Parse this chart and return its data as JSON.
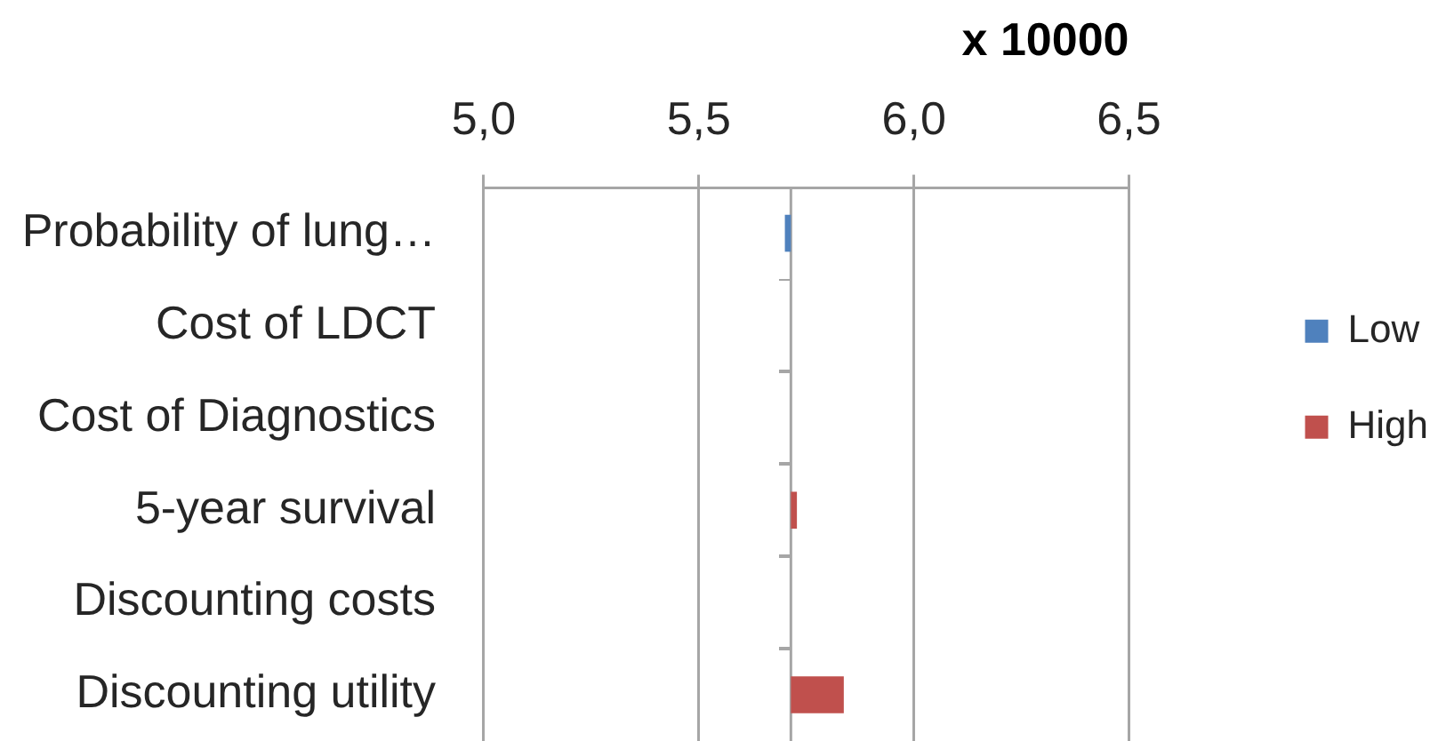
{
  "chart_data": {
    "type": "bar",
    "orientation": "horizontal",
    "xlabel": "x 10000",
    "categories": [
      "Probability of lung…",
      "Cost of LDCT",
      "Cost of Diagnostics",
      "5-year survival",
      "Discounting costs",
      "Discounting utility"
    ],
    "series": [
      {
        "name": "Low",
        "color": "#4f81bd",
        "base": [
          5.714,
          null,
          null,
          null,
          null,
          null
        ],
        "values": [
          -0.014,
          null,
          null,
          null,
          null,
          null
        ]
      },
      {
        "name": "High",
        "color": "#c0504d",
        "base": [
          null,
          null,
          null,
          5.714,
          null,
          5.714
        ],
        "values": [
          null,
          null,
          null,
          0.014,
          null,
          0.123
        ]
      }
    ],
    "xlim": [
      5,
      6.5
    ],
    "xticks": [
      {
        "value": 5,
        "label": "5,0"
      },
      {
        "value": 5.5,
        "label": "5,5"
      },
      {
        "value": 6,
        "label": "6,0"
      },
      {
        "value": 6.5,
        "label": "6,5"
      }
    ],
    "grid": "x",
    "legend": "right"
  }
}
